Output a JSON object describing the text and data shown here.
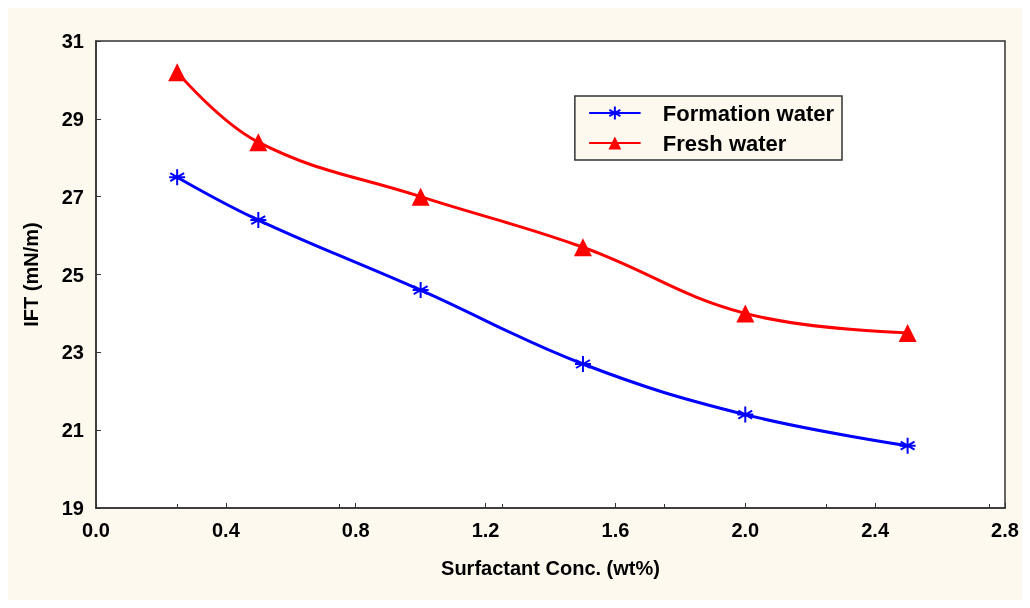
{
  "chart_data": {
    "type": "line",
    "xlabel": "Surfactant Conc. (wt%)",
    "ylabel": "IFT (mN/m)",
    "x": [
      0.25,
      0.5,
      1.0,
      1.5,
      2.0,
      2.5
    ],
    "series": [
      {
        "name": "Formation water",
        "color": "#0000ff",
        "marker": "cross",
        "values": [
          27.5,
          26.4,
          24.6,
          22.7,
          21.4,
          20.6
        ]
      },
      {
        "name": "Fresh water",
        "color": "#ff0000",
        "marker": "triangle",
        "values": [
          30.2,
          28.4,
          27.0,
          25.7,
          24.0,
          23.5
        ]
      }
    ],
    "xlim": [
      0.0,
      2.8
    ],
    "xticks": [
      {
        "value": 0,
        "label": "0.0"
      },
      0.4,
      0.8,
      1.2,
      1.6,
      {
        "value": 2,
        "label": "2.0"
      },
      2.4,
      2.8
    ],
    "ylim": [
      19,
      31
    ],
    "yticks": [
      19,
      21,
      23,
      25,
      27,
      29,
      31
    ],
    "grid": false,
    "legend": "top right",
    "line_style": "solid"
  }
}
